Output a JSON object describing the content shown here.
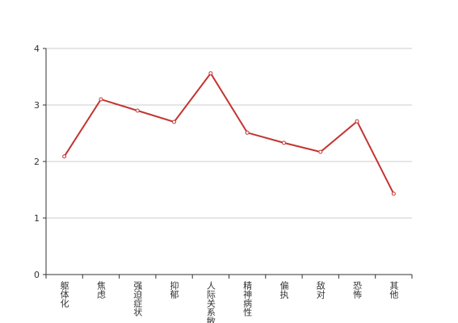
{
  "chart_data": {
    "type": "line",
    "categories": [
      "躯体化",
      "焦虑",
      "强迫症状",
      "抑郁",
      "人际关系敏感",
      "精神病性",
      "偏执",
      "敌对",
      "恐怖",
      "其他"
    ],
    "values": [
      2.09,
      3.1,
      2.9,
      2.7,
      3.56,
      2.51,
      2.33,
      2.17,
      2.71,
      1.43
    ],
    "color": "#c23531",
    "ylim": [
      0,
      4
    ],
    "yticks": [
      0,
      1,
      2,
      3,
      4
    ],
    "grid": true
  }
}
